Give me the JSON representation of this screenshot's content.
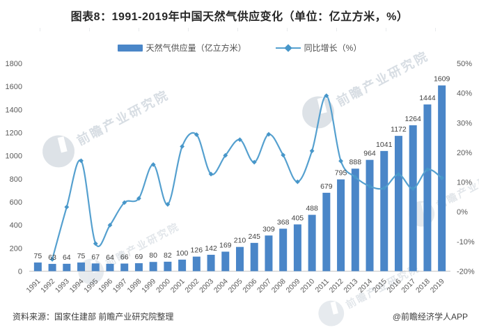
{
  "title": "图表8：1991-2019年中国天然气供应变化（单位：亿立方米，%）",
  "legend": {
    "bar_label": "天然气供应量（亿立方米）",
    "line_label": "同比增长（%）"
  },
  "footer": {
    "source": "资料来源：国家住建部 前瞻产业研究院整理",
    "credit": "@前瞻经济学人APP"
  },
  "watermark": {
    "text": "前瞻产业研究院"
  },
  "colors": {
    "bar": "#4a86c8",
    "line": "#55a0cf",
    "marker": "#4796c9",
    "axis_text": "#595959",
    "value_label": "#404040",
    "baseline": "#c6c6c6"
  },
  "chart_data": {
    "type": "bar",
    "combo": "bar+line dual axis",
    "title": "图表8：1991-2019年中国天然气供应变化（单位：亿立方米，%）",
    "categories": [
      "1991",
      "1992",
      "1993",
      "1994",
      "1995",
      "1996",
      "1997",
      "1998",
      "1999",
      "2000",
      "2001",
      "2002",
      "2003",
      "2004",
      "2005",
      "2006",
      "2007",
      "2008",
      "2009",
      "2010",
      "2011",
      "2012",
      "2013",
      "2014",
      "2015",
      "2016",
      "2017",
      "2018",
      "2019"
    ],
    "series": [
      {
        "name": "天然气供应量（亿立方米）",
        "type": "bar",
        "axis": "left",
        "values": [
          75,
          63,
          64,
          75,
          67,
          64,
          66,
          69,
          80,
          82,
          100,
          126,
          142,
          169,
          210,
          245,
          309,
          368,
          405,
          488,
          679,
          795,
          888,
          964,
          1041,
          1172,
          1264,
          1444,
          1609
        ]
      },
      {
        "name": "同比增长（%）",
        "type": "line",
        "axis": "right",
        "start_category_index": 1,
        "values": [
          -16.0,
          1.6,
          17.2,
          -10.7,
          -4.5,
          3.1,
          4.5,
          15.9,
          2.5,
          22.0,
          26.0,
          12.7,
          19.0,
          24.3,
          16.7,
          26.1,
          19.1,
          10.1,
          20.5,
          39.1,
          17.1,
          11.7,
          8.6,
          8.0,
          12.6,
          7.8,
          14.2,
          11.4
        ]
      }
    ],
    "left_axis": {
      "min": 0,
      "max": 1800,
      "step": 200
    },
    "right_axis": {
      "min": -20,
      "max": 50,
      "step": 10,
      "suffix": "%"
    },
    "grid": false,
    "legend_position": "top",
    "value_labels": "above bars",
    "x_label_rotation": -45
  }
}
